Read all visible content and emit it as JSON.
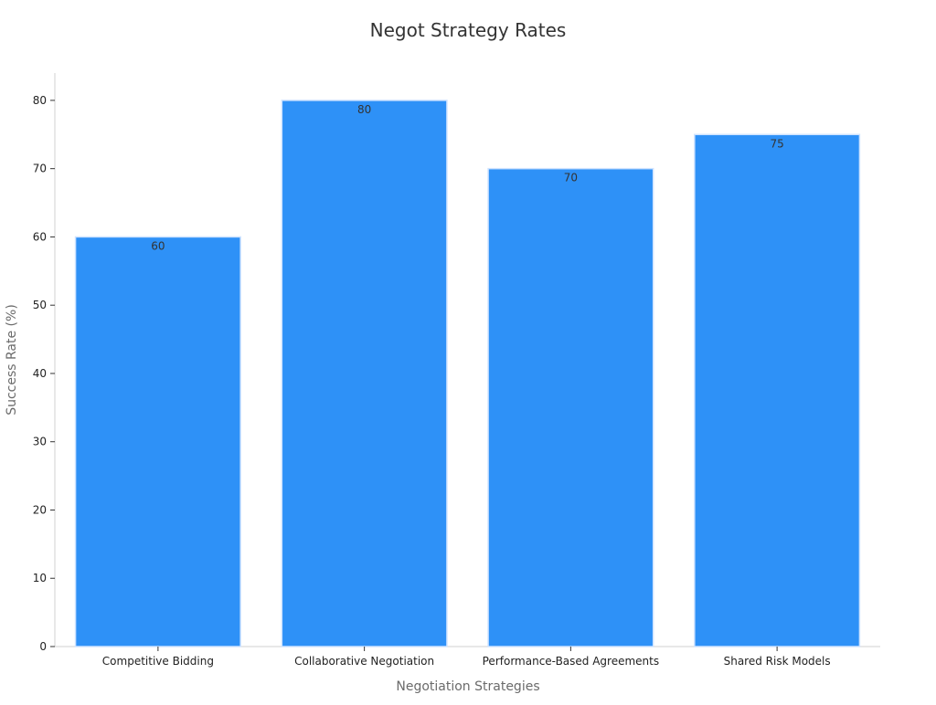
{
  "chart_data": {
    "type": "bar",
    "title": "Negot Strategy Rates",
    "xlabel": "Negotiation Strategies",
    "ylabel": "Success Rate (%)",
    "categories": [
      "Competitive Bidding",
      "Collaborative Negotiation",
      "Performance-Based Agreements",
      "Shared Risk Models"
    ],
    "values": [
      60,
      80,
      70,
      75
    ],
    "ylim": [
      0,
      84
    ],
    "yticks": [
      0,
      10,
      20,
      30,
      40,
      50,
      60,
      70,
      80
    ],
    "grid": false,
    "bar_color": "#2e91f7",
    "bar_edge_color": "#cfe3ff",
    "data_labels": true
  }
}
